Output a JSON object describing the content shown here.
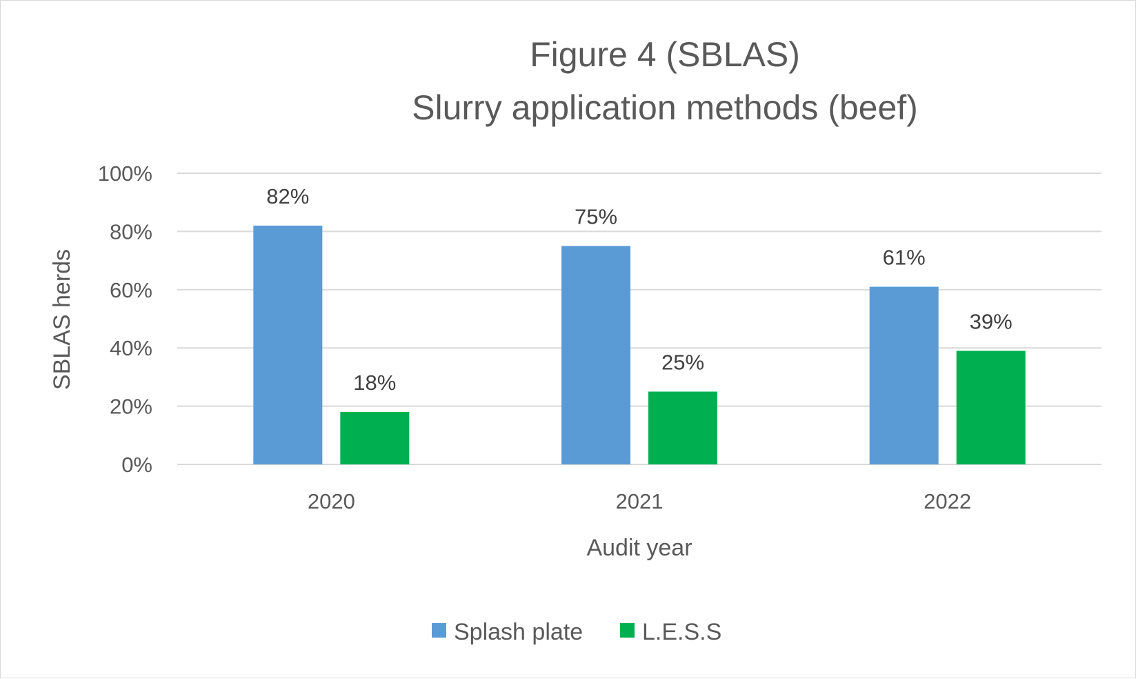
{
  "chart_data": {
    "type": "bar",
    "title": "Figure 4 (SBLAS)",
    "subtitle": "Slurry application methods (beef)",
    "xlabel": "Audit year",
    "ylabel": "SBLAS  herds",
    "categories": [
      "2020",
      "2021",
      "2022"
    ],
    "y_ticks": [
      "0%",
      "20%",
      "40%",
      "60%",
      "80%",
      "100%"
    ],
    "ylim": [
      0,
      100
    ],
    "grid": true,
    "legend_position": "bottom",
    "series": [
      {
        "name": "Splash plate",
        "color": "#5b9bd5",
        "values": [
          82,
          75,
          61
        ],
        "labels": [
          "82%",
          "75%",
          "61%"
        ]
      },
      {
        "name": "L.E.S.S",
        "color": "#00b050",
        "values": [
          18,
          25,
          39
        ],
        "labels": [
          "18%",
          "25%",
          "39%"
        ]
      }
    ]
  }
}
